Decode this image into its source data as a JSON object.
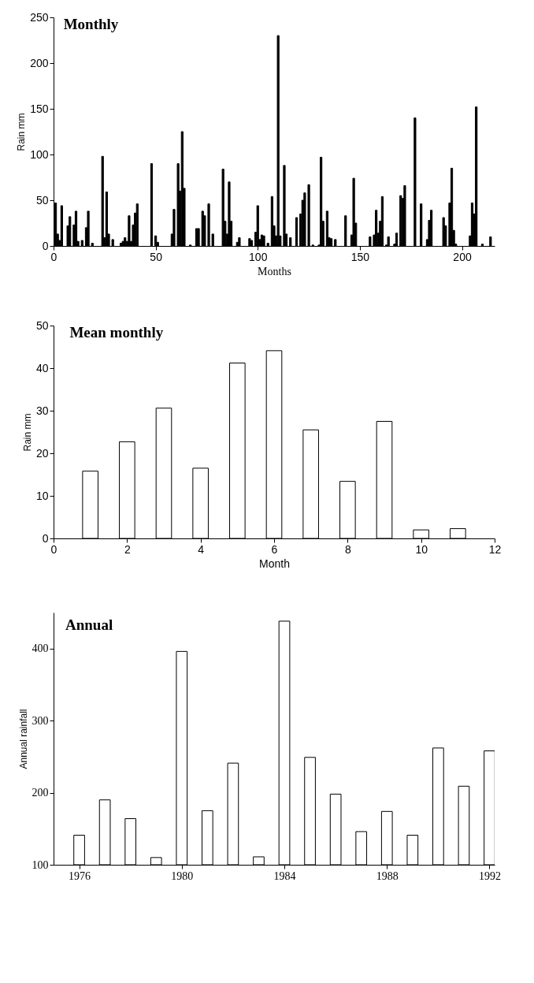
{
  "chart_data": [
    {
      "type": "bar",
      "title": "Monthly",
      "xlabel": "Months",
      "ylabel": "Rain mm",
      "color": "#000000",
      "xlim": [
        0,
        216
      ],
      "xticks": [
        0,
        50,
        100,
        150,
        200
      ],
      "ylim": [
        0,
        250
      ],
      "yticks": [
        0,
        50,
        100,
        150,
        200,
        250
      ],
      "x": [
        1,
        2,
        3,
        4,
        7,
        8,
        10,
        11,
        12,
        14,
        16,
        17,
        19,
        24,
        25,
        26,
        27,
        29,
        33,
        34,
        35,
        36,
        37,
        38,
        39,
        40,
        41,
        48,
        50,
        51,
        58,
        59,
        61,
        62,
        63,
        64,
        67,
        70,
        71,
        73,
        74,
        76,
        78,
        83,
        84,
        85,
        86,
        87,
        90,
        91,
        96,
        97,
        99,
        100,
        101,
        102,
        103,
        105,
        107,
        108,
        109,
        110,
        111,
        113,
        114,
        116,
        119,
        121,
        122,
        123,
        125,
        127,
        130,
        131,
        132,
        134,
        135,
        136,
        138,
        143,
        146,
        147,
        148,
        155,
        157,
        158,
        159,
        160,
        161,
        163,
        164,
        167,
        168,
        170,
        171,
        172,
        177,
        180,
        183,
        184,
        185,
        191,
        192,
        194,
        195,
        196,
        197,
        204,
        205,
        206,
        207,
        210,
        214
      ],
      "values": [
        47,
        13,
        6,
        44,
        22,
        32,
        23,
        38,
        5,
        6,
        20,
        38,
        3,
        98,
        9,
        59,
        13,
        7,
        3,
        5,
        9,
        5,
        33,
        5,
        23,
        36,
        46,
        90,
        11,
        4,
        13,
        40,
        90,
        60,
        125,
        63,
        1,
        19,
        19,
        38,
        33,
        46,
        13,
        84,
        27,
        13,
        70,
        27,
        4,
        9,
        8,
        6,
        15,
        44,
        7,
        12,
        11,
        3,
        54,
        22,
        11,
        230,
        11,
        88,
        13,
        9,
        31,
        35,
        50,
        58,
        67,
        1,
        1,
        97,
        27,
        38,
        9,
        8,
        7,
        33,
        12,
        74,
        25,
        10,
        12,
        39,
        14,
        27,
        54,
        1,
        10,
        2,
        14,
        55,
        52,
        66,
        140,
        46,
        7,
        28,
        39,
        31,
        22,
        47,
        85,
        17,
        2,
        11,
        47,
        35,
        152,
        2,
        10
      ]
    },
    {
      "type": "bar",
      "title": "Mean  monthly",
      "xlabel": "Month",
      "ylabel": "Rain mm",
      "color": "#ffffff",
      "xlim": [
        0,
        12
      ],
      "xticks": [
        0,
        2,
        4,
        6,
        8,
        10,
        12
      ],
      "ylim": [
        0,
        50
      ],
      "yticks": [
        0,
        10,
        20,
        30,
        40,
        50
      ],
      "x": [
        1,
        2,
        3,
        4,
        5,
        6,
        7,
        8,
        9,
        10,
        11
      ],
      "values": [
        15.8,
        22.7,
        30.6,
        16.5,
        41.2,
        44.1,
        25.5,
        13.4,
        27.5,
        2.0,
        2.3
      ]
    },
    {
      "type": "bar",
      "title": "Annual",
      "ylabel": "Annual rainfall",
      "color": "#ffffff",
      "xlim": [
        1975,
        1992.2
      ],
      "xticks": [
        1976,
        1980,
        1984,
        1988,
        1992
      ],
      "ylim": [
        100,
        450
      ],
      "yticks": [
        100,
        200,
        300,
        400
      ],
      "x": [
        1976,
        1977,
        1978,
        1979,
        1980,
        1981,
        1982,
        1983,
        1984,
        1985,
        1986,
        1987,
        1988,
        1989,
        1990,
        1991,
        1992
      ],
      "values": [
        141,
        190,
        164,
        110,
        396,
        175,
        241,
        111,
        438,
        249,
        198,
        146,
        174,
        141,
        262,
        209,
        258
      ]
    }
  ]
}
